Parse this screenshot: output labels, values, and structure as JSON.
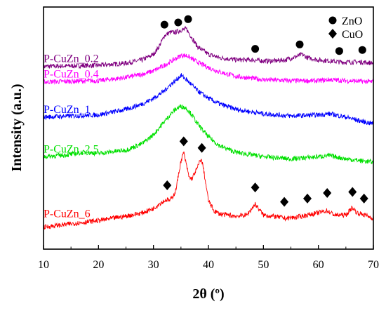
{
  "chart_data": {
    "type": "line",
    "xlabel": "2θ (º)",
    "ylabel": "Intensity (a.u.)",
    "xlim": [
      10,
      70
    ],
    "xticks": [
      "10",
      "20",
      "30",
      "40",
      "50",
      "60",
      "70"
    ],
    "yticks_shown": false,
    "grid": false,
    "legend": {
      "position": "top-right",
      "entries": [
        {
          "label": "ZnO",
          "marker": "circle"
        },
        {
          "label": "CuO",
          "marker": "diamond"
        }
      ]
    },
    "series": [
      {
        "name": "P-CuZn_0.2",
        "label": "P-CuZn_0.2",
        "color": "#800080",
        "x": [
          10,
          20,
          25,
          28,
          30,
          31,
          32,
          33,
          34,
          35,
          36,
          37,
          38,
          40,
          42,
          45,
          48,
          50,
          52,
          54,
          56,
          57,
          58,
          60,
          62,
          64,
          66,
          68,
          70
        ],
        "y": [
          83,
          83.5,
          84.5,
          86,
          88.5,
          92,
          97,
          98.5,
          98.5,
          99.5,
          100,
          96,
          92,
          88.5,
          87,
          86,
          86,
          85.5,
          85.5,
          86,
          87.5,
          88.5,
          87,
          86,
          85.5,
          85,
          85,
          85,
          84.5
        ]
      },
      {
        "name": "P-CuZn_0.4",
        "label": "P-CuZn_0.4",
        "color": "#ff00ff",
        "x": [
          10,
          20,
          25,
          28,
          30,
          32,
          33,
          34,
          35,
          36,
          37,
          38,
          40,
          42,
          45,
          50,
          55,
          60,
          62,
          65,
          70
        ],
        "y": [
          76,
          76.5,
          78,
          79.5,
          81,
          83.5,
          85,
          86.5,
          88,
          88,
          86.5,
          85,
          82.5,
          80.5,
          78.5,
          77,
          76.5,
          76.5,
          77,
          76.5,
          76
        ]
      },
      {
        "name": "P-CuZn_1",
        "label": "P-CuZn_1",
        "color": "#0000ff",
        "x": [
          10,
          20,
          25,
          28,
          30,
          32,
          33,
          34,
          35,
          36,
          37,
          38,
          40,
          42,
          45,
          50,
          55,
          60,
          62,
          65,
          68,
          70
        ],
        "y": [
          60,
          61,
          63.5,
          66,
          68.5,
          72,
          74.5,
          76.5,
          79,
          77,
          74.5,
          72,
          68.5,
          66,
          63.5,
          61.5,
          60.5,
          61,
          61.5,
          60,
          58,
          57
        ]
      },
      {
        "name": "P-CuZn_2.5",
        "label": "P-CuZn_2.5",
        "color": "#00e000",
        "x": [
          10,
          15,
          17.5,
          20,
          25,
          28,
          30,
          32,
          33,
          34,
          35,
          36,
          37,
          38,
          40,
          42,
          45,
          50,
          55,
          60,
          62,
          65,
          70
        ],
        "y": [
          42,
          43,
          44,
          43.5,
          45,
          48,
          52,
          58,
          61,
          63.5,
          65,
          64,
          61,
          57,
          51,
          47,
          44,
          42,
          41,
          42,
          42.5,
          41,
          39.5
        ]
      },
      {
        "name": "P-CuZn_6",
        "label": "P-CuZn_6",
        "color": "#ff0000",
        "x": [
          10,
          20,
          25,
          28,
          30,
          31,
          32,
          32.5,
          33,
          34,
          35,
          35.5,
          36,
          36.5,
          37,
          38,
          38.6,
          39,
          40,
          41,
          42,
          45,
          47,
          48.5,
          50,
          53,
          54,
          56,
          58,
          60,
          61.5,
          63,
          65,
          66.2,
          67,
          68.5,
          70
        ],
        "y": [
          10,
          13,
          15,
          16.5,
          18.5,
          20.5,
          22,
          22.5,
          22,
          26,
          40,
          44,
          38,
          32.5,
          32,
          37,
          41,
          38,
          22,
          17.5,
          16,
          15,
          15.5,
          20.5,
          15.5,
          14.5,
          14,
          14.5,
          15.5,
          16.5,
          17.5,
          15.5,
          15.5,
          19,
          16.5,
          15.5,
          14
        ]
      }
    ],
    "markers": {
      "ZnO": [
        {
          "x": 32,
          "y": 102
        },
        {
          "x": 34.5,
          "y": 103
        },
        {
          "x": 36.3,
          "y": 104.5
        },
        {
          "x": 48.5,
          "y": 91
        },
        {
          "x": 56.6,
          "y": 93
        },
        {
          "x": 63.8,
          "y": 90
        },
        {
          "x": 68,
          "y": 90.5
        }
      ],
      "CuO": [
        {
          "x": 32.5,
          "y": 29
        },
        {
          "x": 35.5,
          "y": 49
        },
        {
          "x": 38.8,
          "y": 46
        },
        {
          "x": 48.5,
          "y": 28
        },
        {
          "x": 53.8,
          "y": 21.5
        },
        {
          "x": 58,
          "y": 23
        },
        {
          "x": 61.6,
          "y": 25.5
        },
        {
          "x": 66.2,
          "y": 26
        },
        {
          "x": 68.3,
          "y": 23
        }
      ]
    }
  }
}
